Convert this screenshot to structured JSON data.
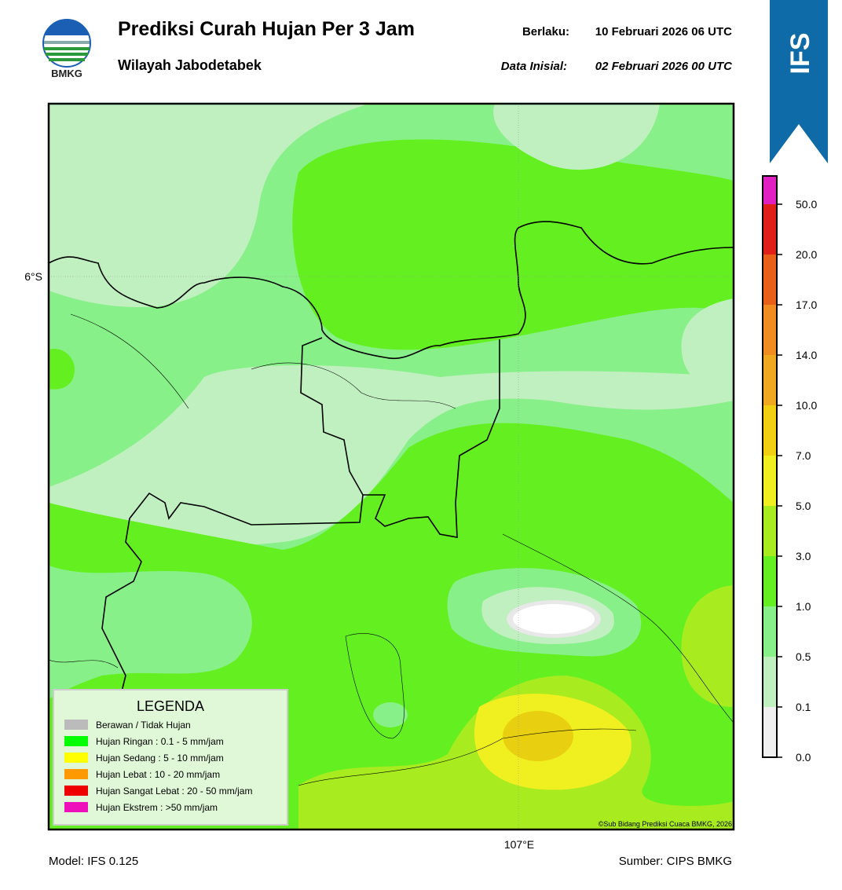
{
  "header": {
    "logo_text": "BMKG",
    "title": "Prediksi Curah Hujan Per 3 Jam",
    "subtitle": "Wilayah Jabodetabek",
    "valid_label": "Berlaku:",
    "valid": "10 Februari 2026 06 UTC",
    "init_label": "Data Inisial:",
    "init": "02 Februari 2026 00 UTC"
  },
  "badge": "IFS",
  "map": {
    "lat_label": "6°S",
    "lon_label": "107°E",
    "credit": "©Sub Bidang Prediksi Cuaca BMKG, 2026"
  },
  "legend": {
    "title": "LEGENDA",
    "items": [
      {
        "color": "#bbbbbb",
        "label": "Berawan / Tidak Hujan"
      },
      {
        "color": "#00ff00",
        "label": "Hujan Ringan : 0.1 - 5 mm/jam"
      },
      {
        "color": "#ffff00",
        "label": "Hujan Sedang : 5 - 10 mm/jam"
      },
      {
        "color": "#ff9900",
        "label": "Hujan Lebat : 10 - 20 mm/jam"
      },
      {
        "color": "#ee0000",
        "label": "Hujan Sangat Lebat : 20 - 50 mm/jam"
      },
      {
        "color": "#ee11bb",
        "label": "Hujan Ekstrem : >50 mm/jam"
      }
    ]
  },
  "colorbar": {
    "ticks": [
      "0.0",
      "0.1",
      "0.5",
      "1.0",
      "3.0",
      "5.0",
      "7.0",
      "10.0",
      "14.0",
      "17.0",
      "20.0",
      "50.0"
    ],
    "colors": [
      "#f0f0f0",
      "#c0f0c0",
      "#88f088",
      "#64f020",
      "#a8ec20",
      "#f0f020",
      "#f0d010",
      "#f0a820",
      "#f08c20",
      "#e86018",
      "#e02018",
      "#e020c0"
    ]
  },
  "footer": {
    "model": "Model: IFS 0.125",
    "source": "Sumber: CIPS BMKG"
  }
}
